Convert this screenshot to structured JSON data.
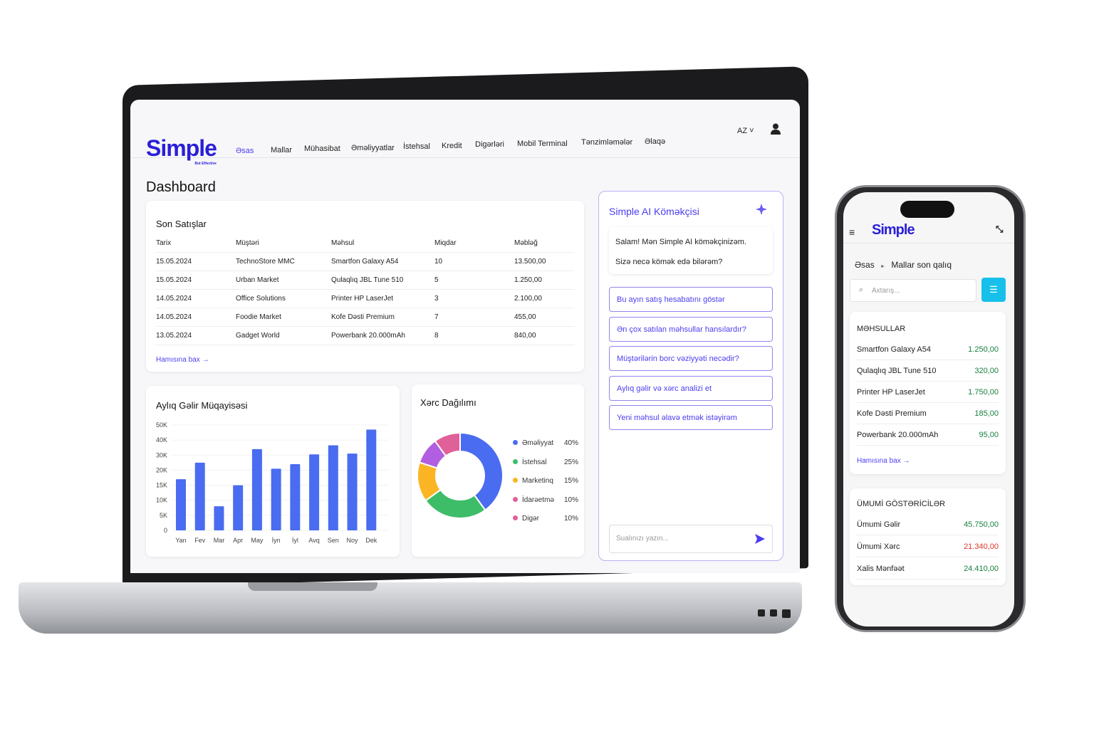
{
  "brand": {
    "name": "Simple",
    "tagline": "But Effective"
  },
  "nav": {
    "items": [
      "Əsas",
      "Mallar",
      "Mühasibat",
      "Əməliyyatlar",
      "İstehsal",
      "Kredit",
      "Digərləri",
      "Mobil Terminal",
      "Tənzimləmələr",
      "Əlaqə"
    ],
    "active": "Əsas",
    "language": "AZ"
  },
  "page_title": "Dashboard",
  "sales": {
    "title": "Son Satışlar",
    "columns": [
      "Tarix",
      "Müştəri",
      "Məhsul",
      "Miqdar",
      "Məbləğ"
    ],
    "rows": [
      [
        "15.05.2024",
        "TechnoStore MMC",
        "Smartfon Galaxy A54",
        "10",
        "13.500,00"
      ],
      [
        "15.05.2024",
        "Urban Market",
        "Qulaqlıq JBL Tune 510",
        "5",
        "1.250,00"
      ],
      [
        "14.05.2024",
        "Office Solutions",
        "Printer HP LaserJet",
        "3",
        "2.100,00"
      ],
      [
        "14.05.2024",
        "Foodie Market",
        "Kofe Dəsti Premium",
        "7",
        "455,00"
      ],
      [
        "13.05.2024",
        "Gadget World",
        "Powerbank 20.000mAh",
        "8",
        "840,00"
      ]
    ],
    "see_all": "Hamısına bax →"
  },
  "ai": {
    "title": "Simple AI Köməkçisi",
    "greeting1": "Salam! Mən Simple AI köməkçinizəm.",
    "greeting2": "Sizə necə kömək edə bilərəm?",
    "suggestions": [
      "Bu ayın satış hesabatını göstər",
      "Ən çox satılan məhsullar hansılardır?",
      "Müştərilərin borc vəziyyəti necədir?",
      "Aylıq gəlir və xərc analizi et",
      "Yeni məhsul əlavə etmək istəyirəm"
    ],
    "input_placeholder": "Sualınızı yazın..."
  },
  "chart_data": [
    {
      "type": "bar",
      "title": "Aylıq Gəlir Müqayisəsi",
      "categories": [
        "Yan",
        "Fev",
        "Mar",
        "Apr",
        "May",
        "İyn",
        "İyl",
        "Avq",
        "Sen",
        "Noy",
        "Dek"
      ],
      "values": [
        17000,
        25000,
        8000,
        15000,
        34000,
        21000,
        24000,
        30500,
        36500,
        31000,
        47000
      ],
      "ylim": [
        0,
        50000
      ],
      "yticks": [
        "0",
        "5K",
        "10K",
        "15K",
        "20K",
        "30K",
        "40K",
        "50K"
      ],
      "yticks_values": [
        0,
        5000,
        10000,
        15000,
        20000,
        30000,
        40000,
        50000
      ],
      "color": "#4a6cf0",
      "grid": true
    },
    {
      "type": "pie",
      "title": "Xərc Dağılımı",
      "donut": true,
      "categories": [
        "Əməliyyat",
        "İstehsal",
        "Marketinq",
        "İdarəetmə",
        "Digər"
      ],
      "values": [
        40,
        25,
        15,
        10,
        10
      ],
      "labels": [
        "40%",
        "25%",
        "15%",
        "10%",
        "10%"
      ],
      "colors": [
        "#4a6cf0",
        "#3dbd68",
        "#fbb524",
        "#b25ee0",
        "#e0609a"
      ],
      "legend_colors": [
        "#4a6cf0",
        "#3dbd68",
        "#fbb524",
        "#e0609a",
        "#e0609a"
      ],
      "legend": "right"
    }
  ],
  "mobile": {
    "breadcrumb": [
      "Əsas",
      "Mallar son qalıq"
    ],
    "search_placeholder": "Axtarış...",
    "products": {
      "title": "MƏHSULLAR",
      "rows": [
        [
          "Smartfon Galaxy A54",
          "1.250,00"
        ],
        [
          "Qulaqlıq JBL Tune 510",
          "320,00"
        ],
        [
          "Printer HP LaserJet",
          "1.750,00"
        ],
        [
          "Kofe Dəsti Premium",
          "185,00"
        ],
        [
          "Powerbank 20.000mAh",
          "95,00"
        ]
      ],
      "see_all": "Hamısına bax →"
    },
    "summary": {
      "title": "ÜMUMİ GÖSTƏRİCİLƏR",
      "rows": [
        [
          "Ümumi Gəlir",
          "45.750,00",
          "#18803f"
        ],
        [
          "Ümumi Xərc",
          "21.340,00",
          "#e0352b"
        ],
        [
          "Xalis Mənfəət",
          "24.410,00",
          "#18803f"
        ]
      ]
    }
  }
}
